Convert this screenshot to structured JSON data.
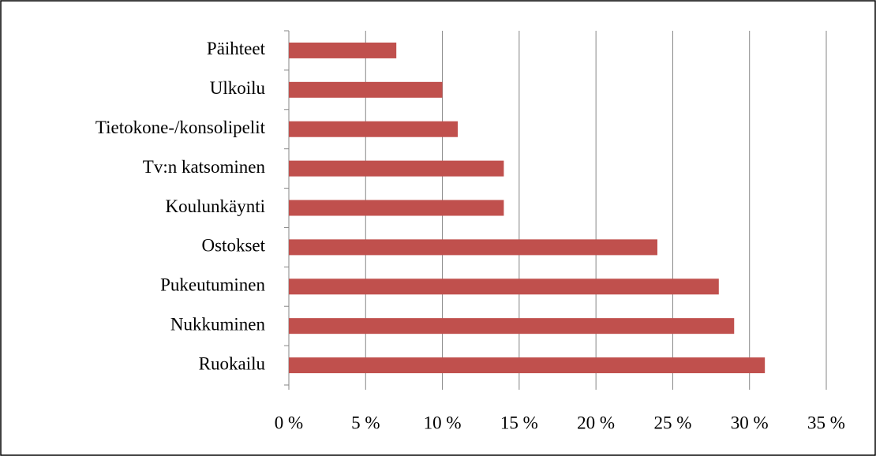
{
  "chart_data": {
    "type": "barh",
    "categories": [
      "Päihteet",
      "Ulkoilu",
      "Tietokone-/konsolipelit",
      "Tv:n katsominen",
      "Koulunkäynti",
      "Ostokset",
      "Pukeutuminen",
      "Nukkuminen",
      "Ruokailu"
    ],
    "values": [
      7,
      10,
      11,
      14,
      14,
      24,
      28,
      29,
      31
    ],
    "color": "#c0504d",
    "xlim": [
      0,
      35
    ],
    "xticks": [
      {
        "value": 0,
        "label": "0 %"
      },
      {
        "value": 5,
        "label": "5 %"
      },
      {
        "value": 10,
        "label": "10 %"
      },
      {
        "value": 15,
        "label": "15 %"
      },
      {
        "value": 20,
        "label": "20 %"
      },
      {
        "value": 25,
        "label": "25 %"
      },
      {
        "value": 30,
        "label": "30 %"
      },
      {
        "value": 35,
        "label": "35 %"
      }
    ],
    "grid": true
  }
}
